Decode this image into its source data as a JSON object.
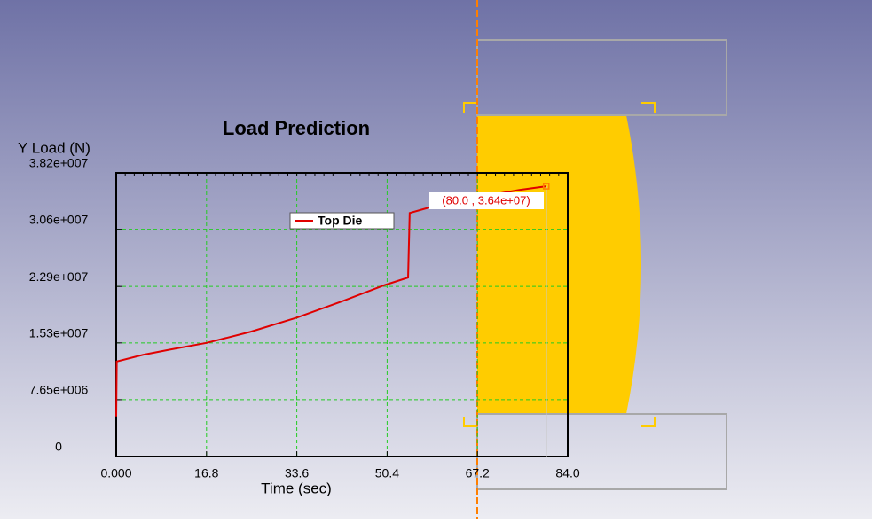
{
  "chart_data": {
    "type": "line",
    "title": "Load Prediction",
    "y_label": "Y Load (N)",
    "x_label": "Time (sec)",
    "annotation": "(80.0 , 3.64e+07)",
    "x": [
      0,
      0.1,
      5,
      10,
      16.8,
      25,
      33.6,
      42,
      50,
      54.3,
      54.6,
      60,
      67.2,
      75,
      80
    ],
    "series": [
      {
        "name": "Top Die",
        "color": "#e00000",
        "values": [
          5400000,
          12800000,
          13700000,
          14400000,
          15300000,
          16800000,
          18700000,
          20900000,
          23100000,
          24100000,
          32800000,
          33900000,
          34900000,
          35900000,
          36400000
        ]
      }
    ],
    "xlim": [
      0,
      84
    ],
    "xticks": [
      {
        "value": 0,
        "label": "0.000"
      },
      16.8,
      33.6,
      50.4,
      67.2,
      {
        "value": 84,
        "label": "84.0"
      }
    ],
    "ylim": [
      0,
      38200000
    ],
    "yticks": [
      {
        "value": 0,
        "label": "0"
      },
      {
        "value": 7650000,
        "label": "7.65e+006"
      },
      {
        "value": 15300000,
        "label": "1.53e+007"
      },
      {
        "value": 22900000,
        "label": "2.29e+007"
      },
      {
        "value": 30600000,
        "label": "3.06e+007"
      },
      {
        "value": 38200000,
        "label": "3.82e+007"
      }
    ],
    "grid": true,
    "grid_color": "#22cc22"
  }
}
